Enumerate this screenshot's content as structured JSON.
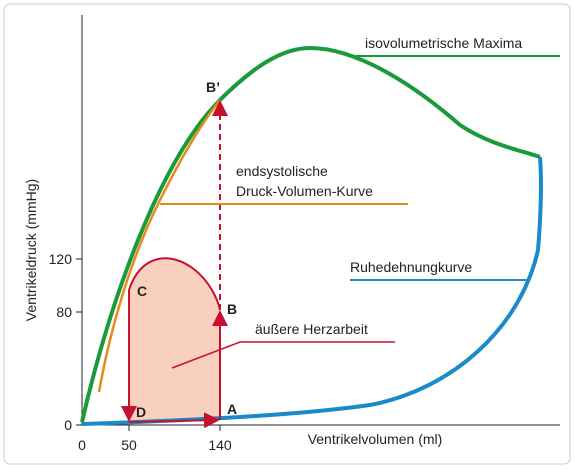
{
  "axes": {
    "y_label": "Ventrikeldruck (mmHg)",
    "x_label": "Ventrikelvolumen (ml)",
    "y_ticks": [
      0,
      80,
      120
    ],
    "x_ticks": [
      0,
      50,
      140
    ]
  },
  "curves": {
    "green": "isovolumetrische Maxima",
    "orange_line1": "endsystolische",
    "orange_line2": "Druck-Volumen-Kurve",
    "blue": "Ruhedehnungkurve",
    "red": "äußere Herzarbeit"
  },
  "points": {
    "b_prime": "B’",
    "c": "C",
    "b": "B",
    "d": "D",
    "a": "A"
  }
}
